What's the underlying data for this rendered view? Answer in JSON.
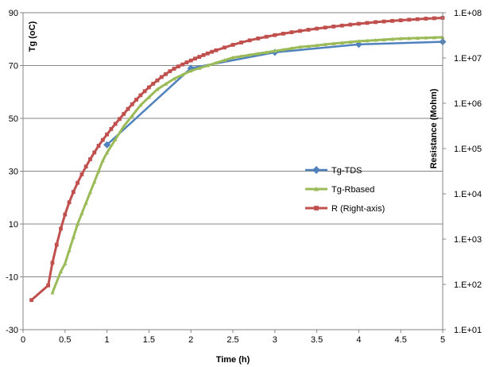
{
  "chart_data": {
    "type": "line",
    "title": "",
    "xlabel": "Time (h)",
    "ylabel": "Tg (oC)",
    "y2label": "Resistance (Mohm)",
    "xlim": [
      0,
      5
    ],
    "ylim": [
      -30,
      90
    ],
    "y2lim": [
      10,
      100000000
    ],
    "y2scale": "log",
    "x_ticks": [
      "0",
      "0.5",
      "1",
      "1.5",
      "2",
      "2.5",
      "3",
      "3.5",
      "4",
      "4.5",
      "5"
    ],
    "y_ticks": [
      "-30",
      "-10",
      "10",
      "30",
      "50",
      "70",
      "90"
    ],
    "y2_ticks": [
      "1.E+01",
      "1.E+02",
      "1.E+03",
      "1.E+04",
      "1.E+05",
      "1.E+06",
      "1.E+07",
      "1.E+08"
    ],
    "grid": "horizontal",
    "legend": "center-right",
    "series": [
      {
        "name": "Tg-TDS",
        "axis": "left",
        "color": "#4F81BD",
        "marker": "diamond",
        "x": [
          1,
          2,
          3,
          4,
          5
        ],
        "y": [
          40,
          69,
          75,
          78,
          79
        ]
      },
      {
        "name": "Tg-Rbased",
        "axis": "left",
        "color": "#9BBB59",
        "marker": "triangle",
        "x": [
          0.35,
          0.45,
          0.5,
          0.55,
          0.6,
          0.65,
          0.7,
          0.75,
          0.8,
          0.85,
          0.9,
          0.95,
          1.0,
          1.1,
          1.2,
          1.3,
          1.4,
          1.5,
          1.6,
          1.7,
          1.8,
          1.9,
          2.0,
          2.1,
          2.2,
          2.3,
          2.4,
          2.5,
          2.6,
          2.7,
          2.8,
          2.9,
          3.0,
          3.1,
          3.2,
          3.3,
          3.4,
          3.5,
          3.6,
          3.7,
          3.8,
          3.9,
          4.0,
          4.1,
          4.2,
          4.3,
          4.4,
          4.5,
          4.6,
          4.7,
          4.8,
          4.9,
          5.0
        ],
        "y": [
          -16,
          -8,
          -5,
          0,
          5,
          10,
          14,
          18,
          22,
          26,
          30,
          34,
          37,
          42,
          47,
          51,
          55,
          58,
          61,
          63,
          65,
          66.5,
          68,
          69,
          70,
          71,
          72,
          73,
          73.5,
          74,
          74.5,
          75,
          75.5,
          76,
          76.5,
          77,
          77.3,
          77.6,
          78,
          78.3,
          78.6,
          78.9,
          79.2,
          79.4,
          79.6,
          79.8,
          80,
          80.2,
          80.3,
          80.4,
          80.5,
          80.6,
          80.7
        ]
      },
      {
        "name": "R (Right-axis)",
        "axis": "right",
        "color": "#C0504D",
        "marker": "square",
        "x": [
          0.1,
          0.3,
          0.35,
          0.4,
          0.45,
          0.5,
          0.55,
          0.6,
          0.65,
          0.7,
          0.75,
          0.8,
          0.85,
          0.9,
          0.95,
          1.0,
          1.05,
          1.1,
          1.15,
          1.2,
          1.25,
          1.3,
          1.35,
          1.4,
          1.45,
          1.5,
          1.55,
          1.6,
          1.65,
          1.7,
          1.75,
          1.8,
          1.85,
          1.9,
          1.95,
          2.0,
          2.05,
          2.1,
          2.15,
          2.2,
          2.25,
          2.3,
          2.4,
          2.5,
          2.6,
          2.7,
          2.8,
          2.9,
          3.0,
          3.1,
          3.2,
          3.3,
          3.4,
          3.5,
          3.6,
          3.7,
          3.8,
          3.9,
          4.0,
          4.1,
          4.2,
          4.3,
          4.4,
          4.5,
          4.6,
          4.7,
          4.8,
          4.9,
          5.0
        ],
        "y": [
          45,
          95,
          300,
          750,
          1700,
          3500,
          6500,
          11000,
          17500,
          27000,
          40000,
          58000,
          82000,
          115000,
          155000,
          205000,
          270000,
          350000,
          450000,
          580000,
          750000,
          950000,
          1200000,
          1500000,
          1850000,
          2250000,
          2700000,
          3200000,
          3800000,
          4400000,
          5100000,
          5800000,
          6500000,
          7200000,
          8000000,
          8800000,
          9700000,
          10600000,
          11600000,
          12600000,
          13700000,
          14800000,
          17000000,
          19500000,
          22000000,
          24500000,
          27000000,
          29500000,
          32000000,
          34500000,
          37000000,
          39500000,
          42000000,
          44500000,
          47000000,
          49500000,
          52000000,
          54500000,
          57000000,
          59500000,
          62000000,
          64000000,
          66000000,
          68000000,
          70000000,
          72000000,
          74000000,
          75500000,
          77000000
        ]
      }
    ]
  }
}
